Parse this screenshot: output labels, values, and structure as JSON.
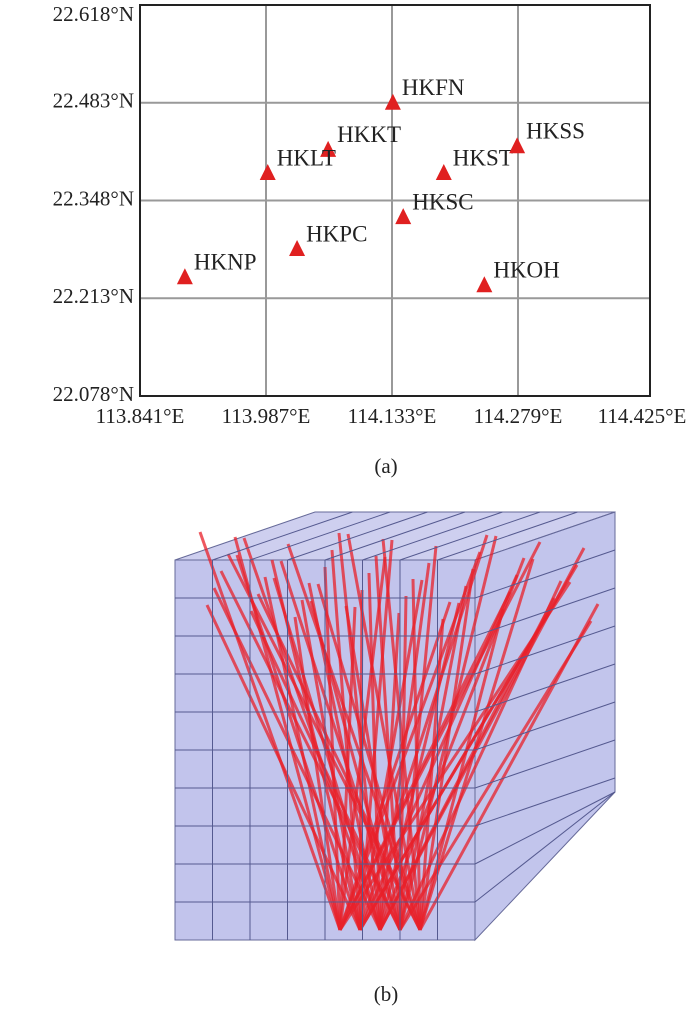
{
  "chart_data": {
    "type": "scatter",
    "x": [
      114.134,
      114.059,
      113.989,
      114.193,
      114.278,
      114.146,
      114.023,
      113.893,
      114.24
    ],
    "y": [
      22.483,
      22.418,
      22.386,
      22.386,
      22.423,
      22.325,
      22.281,
      22.242,
      22.231
    ],
    "point_labels": [
      "HKFN",
      "HKKT",
      "HKLT",
      "HKST",
      "HKSS",
      "HKSC",
      "HKPC",
      "HKNP",
      "HKOH"
    ],
    "color": "#e02020",
    "xlim": [
      113.841,
      114.425
    ],
    "ylim": [
      22.078,
      22.618
    ],
    "xticks": [
      {
        "value": 113.841,
        "label": "113.841°E"
      },
      {
        "value": 113.987,
        "label": "113.987°E"
      },
      {
        "value": 114.133,
        "label": "114.133°E"
      },
      {
        "value": 114.279,
        "label": "114.279°E"
      },
      {
        "value": 114.425,
        "label": "114.425°E"
      }
    ],
    "yticks": [
      {
        "value": 22.078,
        "label": "22.078°N"
      },
      {
        "value": 22.213,
        "label": "22.213°N"
      },
      {
        "value": 22.348,
        "label": "22.348°N"
      },
      {
        "value": 22.483,
        "label": "22.483°N"
      },
      {
        "value": 22.618,
        "label": "22.618°N"
      }
    ],
    "grid": true,
    "caption": "(a)"
  },
  "figure_b": {
    "caption": "(b)"
  }
}
